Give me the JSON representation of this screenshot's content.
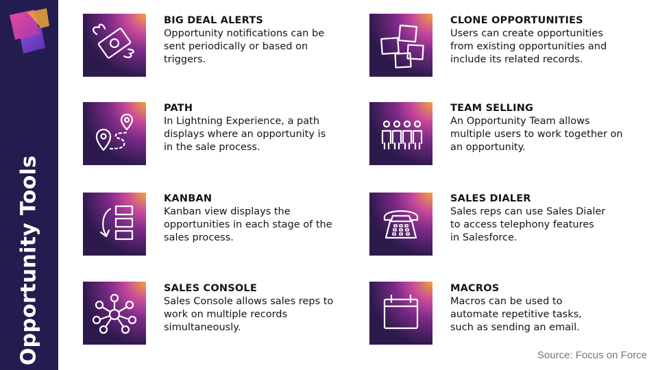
{
  "sidebar": {
    "title": "Opportunity Tools"
  },
  "colors": {
    "sidebar": "#231d4f",
    "tile": "#2d1a4d",
    "glow_orange": "#f0a43a",
    "glow_magenta": "#c94a9c",
    "logo_pink": "#d94596",
    "logo_purple": "#6a3ec4"
  },
  "items": [
    {
      "title": "BIG DEAL ALERTS",
      "icon": "flying-money-icon",
      "lines": [
        "Opportunity notifications can be",
        "sent periodically or based on",
        "triggers."
      ]
    },
    {
      "title": "CLONE OPPORTUNITIES",
      "icon": "sticky-notes-icon",
      "lines": [
        "Users can create opportunities",
        "from existing opportunities and",
        "include its related records."
      ]
    },
    {
      "title": "PATH",
      "icon": "route-icon",
      "lines": [
        "In Lightning Experience, a path",
        "displays where an opportunity is",
        "in the sale process."
      ]
    },
    {
      "title": "TEAM SELLING",
      "icon": "team-icon",
      "lines": [
        "An Opportunity Team allows",
        "multiple users to work together on",
        "an opportunity."
      ]
    },
    {
      "title": "KANBAN",
      "icon": "kanban-icon",
      "lines": [
        "Kanban view displays the",
        "opportunities in each stage of the",
        "sales process."
      ]
    },
    {
      "title": "SALES DIALER",
      "icon": "telephone-icon",
      "lines": [
        "Sales reps can use Sales Dialer",
        "to access telephony features",
        "in Salesforce."
      ]
    },
    {
      "title": "SALES CONSOLE",
      "icon": "network-icon",
      "lines": [
        "Sales Console allows sales reps to",
        "work on multiple records",
        "simultaneously."
      ]
    },
    {
      "title": "MACROS",
      "icon": "calendar-icon",
      "lines": [
        "Macros can be used to",
        "automate repetitive tasks,",
        "such as sending an email."
      ]
    }
  ],
  "source": "Source: Focus on Force"
}
